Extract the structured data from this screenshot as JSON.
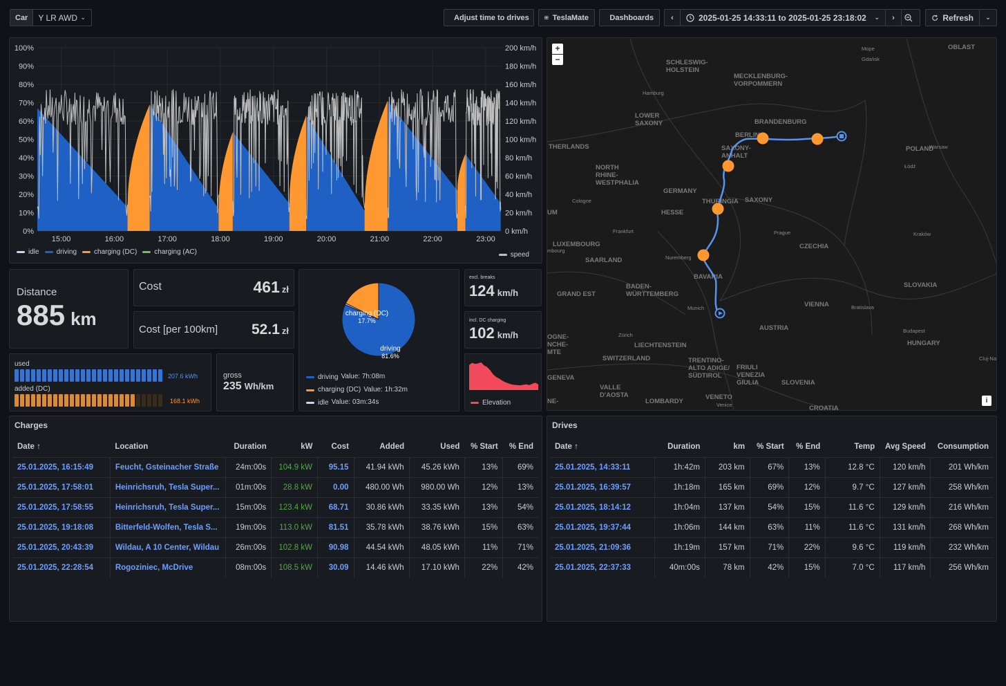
{
  "toolbar": {
    "car_label": "Car",
    "car_value": "Y LR AWD",
    "adjust_label": "Adjust time to drives",
    "teslamate_label": "TeslaMate",
    "dashboards_label": "Dashboards",
    "time_range": "2025-01-25 14:33:11 to 2025-01-25 23:18:02",
    "refresh_label": "Refresh"
  },
  "colors": {
    "idle": "#c8d6ff",
    "driving": "#1f60c4",
    "charging_dc": "#ff9830",
    "charging_ac": "#73bf69",
    "speed": "#c0c0c0",
    "elevation": "#f2495c"
  },
  "chart_data": [
    {
      "type": "area",
      "y_left_ticks": [
        "100%",
        "90%",
        "80%",
        "70%",
        "60%",
        "50%",
        "40%",
        "30%",
        "20%",
        "10%",
        "0%"
      ],
      "y_right_ticks": [
        "200 km/h",
        "180 km/h",
        "160 km/h",
        "140 km/h",
        "120 km/h",
        "100 km/h",
        "80 km/h",
        "60 km/h",
        "40 km/h",
        "20 km/h",
        "0 km/h"
      ],
      "x_ticks": [
        "15:00",
        "16:00",
        "17:00",
        "18:00",
        "19:00",
        "20:00",
        "21:00",
        "22:00",
        "23:00"
      ],
      "ylim": [
        0,
        100
      ],
      "y2lim": [
        0,
        200
      ],
      "x": [
        "14:33",
        "15:30",
        "16:15",
        "16:40",
        "17:58",
        "18:14",
        "19:18",
        "19:37",
        "20:43",
        "21:09",
        "22:28",
        "22:37",
        "23:06",
        "23:18"
      ],
      "series": [
        {
          "name": "driving",
          "values": [
            67,
            38,
            13,
            null,
            null,
            54,
            15,
            63,
            11,
            71,
            22,
            42,
            14,
            null
          ]
        },
        {
          "name": "charging (DC)",
          "values": [
            null,
            null,
            13,
            69,
            13,
            54,
            15,
            63,
            11,
            71,
            22,
            42,
            null,
            null
          ]
        },
        {
          "name": "idle",
          "values": [
            null,
            null,
            null,
            null,
            null,
            null,
            null,
            null,
            null,
            null,
            null,
            null,
            null,
            null
          ]
        },
        {
          "name": "charging (AC)",
          "values": [
            null,
            null,
            null,
            null,
            null,
            null,
            null,
            null,
            null,
            null,
            null,
            null,
            null,
            null
          ]
        },
        {
          "name": "speed",
          "axis": "right",
          "values": [
            120,
            140,
            0,
            0,
            160,
            130,
            135,
            140,
            130,
            125,
            120,
            115,
            110,
            0
          ]
        }
      ]
    },
    {
      "type": "pie",
      "slices": [
        {
          "name": "driving",
          "value": 81.6,
          "label": "driving",
          "pct": "81.6%",
          "legend_value": "Value: 7h:08m"
        },
        {
          "name": "charging (DC)",
          "value": 17.7,
          "label": "charging (DC)",
          "pct": "17.7%",
          "legend_value": "Value: 1h:32m"
        },
        {
          "name": "idle",
          "value": 0.7,
          "label": "idle",
          "legend_value": "Value: 03m:34s"
        }
      ]
    },
    {
      "type": "area",
      "series": [
        {
          "name": "Elevation",
          "values": [
            480,
            520,
            500,
            510,
            530,
            470,
            440,
            380,
            300,
            250,
            220,
            180,
            150,
            130,
            110,
            100,
            95,
            90,
            100,
            110,
            95,
            120,
            140,
            110
          ]
        }
      ]
    }
  ],
  "stats": {
    "distance_label": "Distance",
    "distance_value": "885",
    "distance_unit": "km",
    "cost_label": "Cost",
    "cost_value": "461",
    "cost_unit": "zł",
    "cost100_label": "Cost [per 100km]",
    "cost100_value": "52.1",
    "cost100_unit": "zł",
    "speed1_label": "excl. breaks",
    "speed1_value": "124",
    "speed1_unit": "km/h",
    "speed2_label": "incl. DC charging",
    "speed2_value": "102",
    "speed2_unit": "km/h",
    "used_label": "used",
    "used_value": "207.6 kWh",
    "used_fraction": 1.0,
    "added_label": "added (DC)",
    "added_value": "168.1 kWh",
    "added_fraction": 0.81,
    "gross_label": "gross",
    "gross_value": "235",
    "gross_unit": "Wh/km",
    "elevation_label": "Elevation"
  },
  "map": {
    "zoom_in": "+",
    "zoom_out": "−",
    "info": "i",
    "labels": [
      {
        "t": "SCHLESWIG-\nHOLSTEIN"
      },
      {
        "t": "MECKLENBURG-\nVORPOMMERN"
      },
      {
        "t": "Hamburg"
      },
      {
        "t": "LOWER\nSAXONY"
      },
      {
        "t": "BRANDENBURG"
      },
      {
        "t": "BERLIN"
      },
      {
        "t": "THERLANDS"
      },
      {
        "t": "SAXONY-\nANHALT"
      },
      {
        "t": "NORTH\nRHINE-\nWESTPHALIA"
      },
      {
        "t": "GERMANY"
      },
      {
        "t": "THURINGIA"
      },
      {
        "t": "SAXONY"
      },
      {
        "t": "POLAND"
      },
      {
        "t": "Warsaw"
      },
      {
        "t": "Łódź"
      },
      {
        "t": "Cologne"
      },
      {
        "t": "HESSE"
      },
      {
        "t": "Frankfurt"
      },
      {
        "t": "Prague"
      },
      {
        "t": "CZECHIA"
      },
      {
        "t": "Kraków"
      },
      {
        "t": "LUXEMBOURG"
      },
      {
        "t": "SAARLAND"
      },
      {
        "t": "Nuremberg"
      },
      {
        "t": "BAVARIA"
      },
      {
        "t": "BADEN-\nWÜRTTEMBERG"
      },
      {
        "t": "GRAND EST"
      },
      {
        "t": "Munich"
      },
      {
        "t": "SLOVAKIA"
      },
      {
        "t": "VIENNA"
      },
      {
        "t": "Bratislava"
      },
      {
        "t": "AUSTRIA"
      },
      {
        "t": "Budapest"
      },
      {
        "t": "HUNGARY"
      },
      {
        "t": "Zürich"
      },
      {
        "t": "LIECHTENSTEIN"
      },
      {
        "t": "SWITZERLAND"
      },
      {
        "t": "TRENTINO-\nALTO ADIGE/\nSÜDTIROL"
      },
      {
        "t": "FRIULI\nVENEZIA\nGIULIA"
      },
      {
        "t": "SLOVENIA"
      },
      {
        "t": "CROATIA"
      },
      {
        "t": "GENEVA"
      },
      {
        "t": "VALLE\nD'AOSTA"
      },
      {
        "t": "LOMBARDY"
      },
      {
        "t": "VENETO"
      },
      {
        "t": "Venice"
      },
      {
        "t": "Gdańsk"
      },
      {
        "t": "OBLAST"
      },
      {
        "t": "Cluj-Na"
      },
      {
        "t": "mbourg"
      },
      {
        "t": "UM"
      },
      {
        "t": "OGNE-\nNCHE-\nMTE"
      },
      {
        "t": "NE-"
      },
      {
        "t": "Mope"
      }
    ]
  },
  "charges": {
    "title": "Charges",
    "columns": [
      "Date ↑",
      "Location",
      "Duration",
      "kW",
      "Cost",
      "Added",
      "Used",
      "% Start",
      "% End"
    ],
    "rows": [
      [
        "25.01.2025, 16:15:49",
        "Feucht, Gsteinacher Straße",
        "24m:00s",
        "104.9 kW",
        "95.15",
        "41.94 kWh",
        "45.26 kWh",
        "13%",
        "69%"
      ],
      [
        "25.01.2025, 17:58:01",
        "Heinrichsruh, Tesla Super...",
        "01m:00s",
        "28.8 kW",
        "0.00",
        "480.00 Wh",
        "980.00 Wh",
        "12%",
        "13%"
      ],
      [
        "25.01.2025, 17:58:55",
        "Heinrichsruh, Tesla Super...",
        "15m:00s",
        "123.4 kW",
        "68.71",
        "30.86 kWh",
        "33.35 kWh",
        "13%",
        "54%"
      ],
      [
        "25.01.2025, 19:18:08",
        "Bitterfeld-Wolfen, Tesla S...",
        "19m:00s",
        "113.0 kW",
        "81.51",
        "35.78 kWh",
        "38.76 kWh",
        "15%",
        "63%"
      ],
      [
        "25.01.2025, 20:43:39",
        "Wildau, A 10 Center, Wildau",
        "26m:00s",
        "102.8 kW",
        "90.98",
        "44.54 kWh",
        "48.05 kWh",
        "11%",
        "71%"
      ],
      [
        "25.01.2025, 22:28:54",
        "Rogoziniec, McDrive",
        "08m:00s",
        "108.5 kW",
        "30.09",
        "14.46 kWh",
        "17.10 kWh",
        "22%",
        "42%"
      ]
    ]
  },
  "drives": {
    "title": "Drives",
    "columns": [
      "Date ↑",
      "Duration",
      "km",
      "% Start",
      "% End",
      "Temp",
      "Avg Speed",
      "Consumption"
    ],
    "rows": [
      [
        "25.01.2025, 14:33:11",
        "1h:42m",
        "203 km",
        "67%",
        "13%",
        "12.8 °C",
        "120 km/h",
        "201 Wh/km"
      ],
      [
        "25.01.2025, 16:39:57",
        "1h:18m",
        "165 km",
        "69%",
        "12%",
        "9.7 °C",
        "127 km/h",
        "258 Wh/km"
      ],
      [
        "25.01.2025, 18:14:12",
        "1h:04m",
        "137 km",
        "54%",
        "15%",
        "11.6 °C",
        "129 km/h",
        "216 Wh/km"
      ],
      [
        "25.01.2025, 19:37:44",
        "1h:06m",
        "144 km",
        "63%",
        "11%",
        "11.6 °C",
        "131 km/h",
        "268 Wh/km"
      ],
      [
        "25.01.2025, 21:09:36",
        "1h:19m",
        "157 km",
        "71%",
        "22%",
        "9.6 °C",
        "119 km/h",
        "232 Wh/km"
      ],
      [
        "25.01.2025, 22:37:33",
        "40m:00s",
        "78 km",
        "42%",
        "15%",
        "7.0 °C",
        "117 km/h",
        "256 Wh/km"
      ]
    ]
  }
}
